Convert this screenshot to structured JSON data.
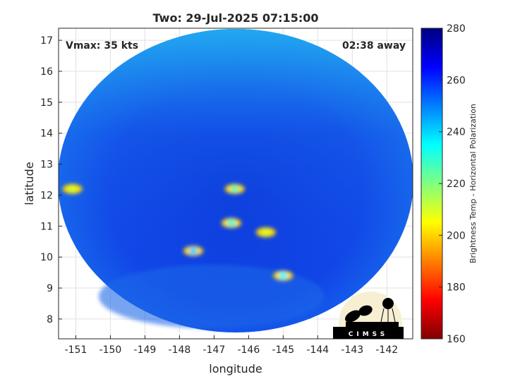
{
  "chart_data": {
    "type": "heatmap",
    "title": "Two: 29-Jul-2025 07:15:00",
    "xlabel": "longitude",
    "ylabel": "latitude",
    "xlim": [
      -151.5,
      -141.25
    ],
    "ylim": [
      7.36,
      17.39
    ],
    "xticks": [
      "-151",
      "-150",
      "-149",
      "-148",
      "-147",
      "-146",
      "-145",
      "-144",
      "-143",
      "-142"
    ],
    "xtick_values": [
      -151,
      -150,
      -149,
      -148,
      -147,
      -146,
      -145,
      -144,
      -143,
      -142
    ],
    "yticks": [
      "8",
      "9",
      "10",
      "11",
      "12",
      "13",
      "14",
      "15",
      "16",
      "17"
    ],
    "ytick_values": [
      8,
      9,
      10,
      11,
      12,
      13,
      14,
      15,
      16,
      17
    ],
    "grid": true,
    "annotations": {
      "vmax": "Vmax: 35 kts",
      "time_offset": "02:38 away"
    },
    "colorbar": {
      "label": "Brightness Temp - Horizontal Polarization",
      "range": [
        160,
        280
      ],
      "ticks": [
        "160",
        "180",
        "200",
        "220",
        "240",
        "260",
        "280"
      ],
      "tick_values": [
        160,
        180,
        200,
        220,
        240,
        260,
        280
      ],
      "colormap": "jet"
    },
    "features": [
      {
        "lon": -146.4,
        "lat": 12.2,
        "tb": 215
      },
      {
        "lon": -147.6,
        "lat": 10.2,
        "tb": 200
      },
      {
        "lon": -146.5,
        "lat": 11.1,
        "tb": 210
      },
      {
        "lon": -145.0,
        "lat": 9.4,
        "tb": 205
      },
      {
        "lon": -151.1,
        "lat": 12.2,
        "tb": 230
      },
      {
        "lon": -145.5,
        "lat": 10.8,
        "tb": 230
      }
    ]
  },
  "logo": {
    "text": "CIMSS"
  }
}
